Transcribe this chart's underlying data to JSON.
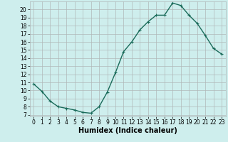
{
  "x": [
    0,
    1,
    2,
    3,
    4,
    5,
    6,
    7,
    8,
    9,
    10,
    11,
    12,
    13,
    14,
    15,
    16,
    17,
    18,
    19,
    20,
    21,
    22,
    23
  ],
  "y": [
    10.8,
    9.9,
    8.7,
    8.0,
    7.8,
    7.6,
    7.3,
    7.2,
    8.0,
    9.8,
    12.2,
    14.8,
    16.0,
    17.5,
    18.5,
    19.3,
    19.3,
    20.8,
    20.5,
    19.3,
    18.3,
    16.8,
    15.2,
    14.5
  ],
  "line_color": "#1a6b5a",
  "marker": "+",
  "marker_size": 3,
  "bg_color": "#ceeeed",
  "grid_color": "#b0b8b8",
  "xlabel": "Humidex (Indice chaleur)",
  "xlim": [
    -0.5,
    23.5
  ],
  "ylim": [
    6.8,
    21.0
  ],
  "yticks": [
    7,
    8,
    9,
    10,
    11,
    12,
    13,
    14,
    15,
    16,
    17,
    18,
    19,
    20
  ],
  "xticks": [
    0,
    1,
    2,
    3,
    4,
    5,
    6,
    7,
    8,
    9,
    10,
    11,
    12,
    13,
    14,
    15,
    16,
    17,
    18,
    19,
    20,
    21,
    22,
    23
  ],
  "tick_font_size": 5.5,
  "xlabel_font_size": 7,
  "line_width": 1.0
}
